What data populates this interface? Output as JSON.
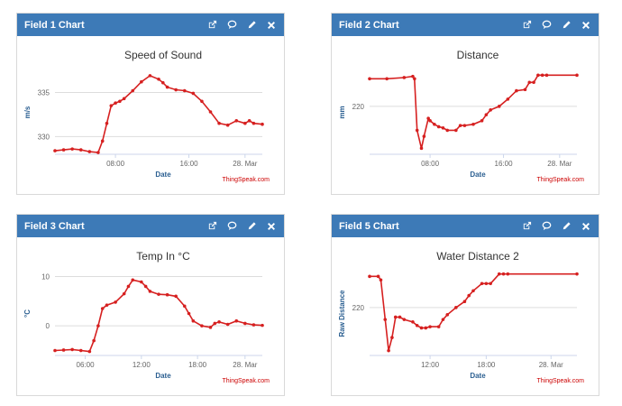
{
  "panels": [
    {
      "id": "f1",
      "header": "Field 1 Chart",
      "icons": [
        "external-link-icon",
        "comment-icon",
        "pencil-icon",
        "close-icon"
      ],
      "credit": "ThingSpeak.com",
      "chart_data": {
        "type": "line",
        "title": "Speed of Sound",
        "xlabel": "Date",
        "ylabel": "m/s",
        "x_ticks": [
          "08:00",
          "16:00",
          "28. Mar"
        ],
        "y_ticks": [
          330,
          335
        ],
        "ylim": [
          328,
          337.5
        ],
        "xlim": [
          0,
          24
        ],
        "color": "#d62020",
        "series": [
          {
            "x": [
              0,
              1,
              2,
              3,
              4,
              5,
              5.5,
              6,
              6.5,
              7,
              7.5,
              8,
              9,
              10,
              11,
              12,
              12.5,
              13,
              14,
              15,
              16,
              17,
              18,
              19,
              20,
              21,
              22,
              22.5,
              23,
              24
            ],
            "y": [
              328.4,
              328.5,
              328.6,
              328.5,
              328.3,
              328.2,
              329.5,
              331.5,
              333.5,
              333.8,
              334.0,
              334.3,
              335.2,
              336.2,
              336.9,
              336.5,
              336.1,
              335.6,
              335.3,
              335.2,
              334.9,
              334.0,
              332.8,
              331.5,
              331.3,
              331.8,
              331.5,
              331.8,
              331.5,
              331.4
            ]
          }
        ]
      }
    },
    {
      "id": "f2",
      "header": "Field 2 Chart",
      "icons": [
        "external-link-icon",
        "comment-icon",
        "pencil-icon",
        "close-icon"
      ],
      "credit": "ThingSpeak.com",
      "chart_data": {
        "type": "line",
        "title": "Distance",
        "xlabel": "Date",
        "ylabel": "mm",
        "x_ticks": [
          "08:00",
          "16:00",
          "28. Mar"
        ],
        "y_ticks": [
          220
        ],
        "ylim": [
          180,
          250
        ],
        "xlim": [
          0,
          24
        ],
        "color": "#d62020",
        "series": [
          {
            "x": [
              0,
              2,
              4,
              5,
              5.2,
              5.5,
              6,
              6.3,
              6.8,
              7,
              7.5,
              8,
              8.5,
              9,
              10,
              10.5,
              11,
              12,
              13,
              13.5,
              14,
              15,
              16,
              17,
              18,
              18.5,
              19,
              19.5,
              20,
              20.5,
              24
            ],
            "y": [
              243,
              243,
              244,
              245,
              243,
              200,
              185,
              195,
              210,
              208,
              205,
              203,
              202,
              200,
              200,
              204,
              204,
              205,
              208,
              213,
              217,
              220,
              226,
              233,
              234,
              240,
              240,
              246,
              246,
              246,
              246
            ]
          }
        ]
      }
    },
    {
      "id": "f3",
      "header": "Field 3 Chart",
      "icons": [
        "external-link-icon",
        "comment-icon",
        "pencil-icon",
        "close-icon"
      ],
      "credit": "ThingSpeak.com",
      "chart_data": {
        "type": "line",
        "title": "Temp In °C",
        "xlabel": "Date",
        "ylabel": "°C",
        "x_ticks": [
          "06:00",
          "12:00",
          "18:00",
          "28. Mar"
        ],
        "y_ticks": [
          0,
          10
        ],
        "ylim": [
          -6,
          11
        ],
        "xlim": [
          0,
          24
        ],
        "color": "#d62020",
        "series": [
          {
            "x": [
              0,
              1,
              2,
              3,
              4,
              4.5,
              5,
              5.5,
              6,
              7,
              8,
              8.5,
              9,
              10,
              10.5,
              11,
              12,
              13,
              14,
              15,
              15.5,
              16,
              17,
              18,
              18.5,
              19,
              20,
              21,
              22,
              23,
              24
            ],
            "y": [
              -5.0,
              -4.9,
              -4.8,
              -5.0,
              -5.2,
              -3.0,
              0.0,
              3.5,
              4.2,
              4.8,
              6.5,
              8.0,
              9.3,
              8.9,
              8.0,
              7.0,
              6.4,
              6.3,
              6.0,
              4.0,
              2.5,
              1.0,
              0.0,
              -0.3,
              0.5,
              0.8,
              0.3,
              1.0,
              0.5,
              0.2,
              0.1
            ]
          }
        ]
      }
    },
    {
      "id": "f5",
      "header": "Field 5 Chart",
      "icons": [
        "external-link-icon",
        "comment-icon",
        "pencil-icon",
        "close-icon"
      ],
      "credit": "ThingSpeak.com",
      "chart_data": {
        "type": "line",
        "title": "Water Distance 2",
        "xlabel": "Date",
        "ylabel": "Raw Distance",
        "x_ticks": [
          "12:00",
          "18:00",
          "28. Mar"
        ],
        "y_ticks": [
          220
        ],
        "ylim": [
          180,
          250
        ],
        "xlim": [
          0,
          24
        ],
        "color": "#d62020",
        "series": [
          {
            "x": [
              0,
              1,
              1.3,
              1.8,
              2.2,
              2.6,
              3,
              3.5,
              4,
              5,
              5.5,
              6,
              6.5,
              7,
              8,
              8.5,
              9,
              10,
              11,
              11.5,
              12,
              13,
              13.5,
              14,
              15,
              15.5,
              16,
              24
            ],
            "y": [
              246,
              246,
              243,
              210,
              184,
              195,
              212,
              212,
              210,
              208,
              205,
              203,
              203,
              204,
              204,
              210,
              214,
              220,
              225,
              230,
              234,
              240,
              240,
              240,
              248,
              248,
              248,
              248
            ]
          }
        ]
      }
    }
  ]
}
